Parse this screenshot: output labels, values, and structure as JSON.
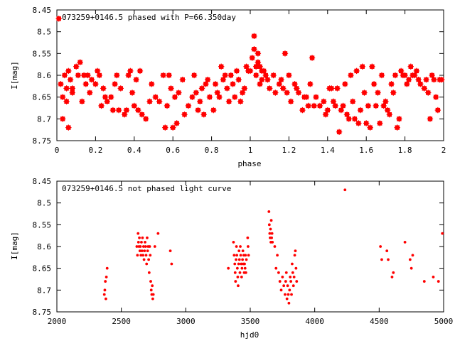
{
  "colors": {
    "points": "#ff0000",
    "axes": "#000000",
    "background": "#ffffff"
  },
  "chart_data": [
    {
      "type": "scatter",
      "title": "073259+0146.5 phased with P=66.350day",
      "xlabel": "phase",
      "ylabel": "I[mag]",
      "xlim": [
        0,
        2
      ],
      "ylim": [
        8.45,
        8.75
      ],
      "y_inverted": true,
      "grid": false,
      "x_ticks": [
        "0",
        "0.2",
        "0.4",
        "0.6",
        "0.8",
        "1",
        "1.2",
        "1.4",
        "1.6",
        "1.8",
        "2"
      ],
      "y_ticks": [
        "8.45",
        "8.5",
        "8.55",
        "8.6",
        "8.65",
        "8.7",
        "8.75"
      ],
      "marker": "star",
      "points": [
        [
          0.01,
          8.47
        ],
        [
          0.02,
          8.62
        ],
        [
          0.03,
          8.65
        ],
        [
          0.03,
          8.7
        ],
        [
          0.04,
          8.6
        ],
        [
          0.05,
          8.63
        ],
        [
          0.05,
          8.66
        ],
        [
          0.06,
          8.59
        ],
        [
          0.06,
          8.72
        ],
        [
          0.07,
          8.61
        ],
        [
          0.08,
          8.63
        ],
        [
          0.08,
          8.64
        ],
        [
          0.1,
          8.58
        ],
        [
          0.11,
          8.6
        ],
        [
          0.12,
          8.57
        ],
        [
          0.13,
          8.66
        ],
        [
          0.14,
          8.6
        ],
        [
          0.15,
          8.62
        ],
        [
          0.16,
          8.6
        ],
        [
          0.17,
          8.64
        ],
        [
          0.18,
          8.61
        ],
        [
          0.2,
          8.62
        ],
        [
          0.21,
          8.59
        ],
        [
          0.22,
          8.6
        ],
        [
          0.23,
          8.67
        ],
        [
          0.24,
          8.63
        ],
        [
          0.25,
          8.65
        ],
        [
          0.26,
          8.66
        ],
        [
          0.28,
          8.65
        ],
        [
          0.29,
          8.68
        ],
        [
          0.3,
          8.62
        ],
        [
          0.31,
          8.6
        ],
        [
          0.32,
          8.68
        ],
        [
          0.33,
          8.63
        ],
        [
          0.35,
          8.69
        ],
        [
          0.36,
          8.68
        ],
        [
          0.37,
          8.6
        ],
        [
          0.38,
          8.59
        ],
        [
          0.39,
          8.64
        ],
        [
          0.4,
          8.67
        ],
        [
          0.41,
          8.61
        ],
        [
          0.42,
          8.68
        ],
        [
          0.43,
          8.59
        ],
        [
          0.44,
          8.69
        ],
        [
          0.46,
          8.7
        ],
        [
          0.48,
          8.66
        ],
        [
          0.49,
          8.62
        ],
        [
          0.51,
          8.65
        ],
        [
          0.53,
          8.66
        ],
        [
          0.55,
          8.6
        ],
        [
          0.56,
          8.72
        ],
        [
          0.57,
          8.67
        ],
        [
          0.58,
          8.6
        ],
        [
          0.59,
          8.63
        ],
        [
          0.6,
          8.72
        ],
        [
          0.61,
          8.65
        ],
        [
          0.62,
          8.71
        ],
        [
          0.63,
          8.64
        ],
        [
          0.65,
          8.61
        ],
        [
          0.66,
          8.69
        ],
        [
          0.68,
          8.67
        ],
        [
          0.7,
          8.65
        ],
        [
          0.71,
          8.6
        ],
        [
          0.72,
          8.64
        ],
        [
          0.73,
          8.68
        ],
        [
          0.74,
          8.66
        ],
        [
          0.75,
          8.63
        ],
        [
          0.76,
          8.69
        ],
        [
          0.77,
          8.62
        ],
        [
          0.78,
          8.61
        ],
        [
          0.79,
          8.65
        ],
        [
          0.81,
          8.68
        ],
        [
          0.82,
          8.62
        ],
        [
          0.83,
          8.64
        ],
        [
          0.84,
          8.65
        ],
        [
          0.85,
          8.58
        ],
        [
          0.86,
          8.61
        ],
        [
          0.87,
          8.6
        ],
        [
          0.88,
          8.63
        ],
        [
          0.89,
          8.66
        ],
        [
          0.9,
          8.6
        ],
        [
          0.91,
          8.62
        ],
        [
          0.92,
          8.65
        ],
        [
          0.93,
          8.59
        ],
        [
          0.94,
          8.61
        ],
        [
          0.95,
          8.66
        ],
        [
          0.96,
          8.64
        ],
        [
          0.97,
          8.63
        ],
        [
          0.98,
          8.58
        ],
        [
          0.99,
          8.59
        ],
        [
          1.0,
          8.59
        ],
        [
          1.01,
          8.56
        ],
        [
          1.02,
          8.54
        ],
        [
          1.02,
          8.51
        ],
        [
          1.03,
          8.58
        ],
        [
          1.03,
          8.6
        ],
        [
          1.04,
          8.55
        ],
        [
          1.04,
          8.57
        ],
        [
          1.05,
          8.58
        ],
        [
          1.05,
          8.62
        ],
        [
          1.06,
          8.59
        ],
        [
          1.06,
          8.61
        ],
        [
          1.07,
          8.59
        ],
        [
          1.08,
          8.6
        ],
        [
          1.09,
          8.61
        ],
        [
          1.1,
          8.63
        ],
        [
          1.12,
          8.6
        ],
        [
          1.13,
          8.64
        ],
        [
          1.15,
          8.62
        ],
        [
          1.16,
          8.61
        ],
        [
          1.17,
          8.63
        ],
        [
          1.18,
          8.55
        ],
        [
          1.19,
          8.64
        ],
        [
          1.2,
          8.6
        ],
        [
          1.21,
          8.66
        ],
        [
          1.23,
          8.62
        ],
        [
          1.24,
          8.63
        ],
        [
          1.25,
          8.64
        ],
        [
          1.27,
          8.68
        ],
        [
          1.28,
          8.65
        ],
        [
          1.29,
          8.65
        ],
        [
          1.3,
          8.67
        ],
        [
          1.31,
          8.62
        ],
        [
          1.32,
          8.56
        ],
        [
          1.33,
          8.67
        ],
        [
          1.34,
          8.65
        ],
        [
          1.36,
          8.67
        ],
        [
          1.38,
          8.66
        ],
        [
          1.39,
          8.69
        ],
        [
          1.4,
          8.68
        ],
        [
          1.41,
          8.63
        ],
        [
          1.42,
          8.63
        ],
        [
          1.43,
          8.66
        ],
        [
          1.44,
          8.67
        ],
        [
          1.45,
          8.63
        ],
        [
          1.46,
          8.73
        ],
        [
          1.47,
          8.68
        ],
        [
          1.48,
          8.67
        ],
        [
          1.49,
          8.62
        ],
        [
          1.5,
          8.69
        ],
        [
          1.51,
          8.7
        ],
        [
          1.52,
          8.6
        ],
        [
          1.53,
          8.66
        ],
        [
          1.54,
          8.7
        ],
        [
          1.55,
          8.59
        ],
        [
          1.56,
          8.71
        ],
        [
          1.57,
          8.68
        ],
        [
          1.58,
          8.58
        ],
        [
          1.59,
          8.64
        ],
        [
          1.6,
          8.71
        ],
        [
          1.61,
          8.67
        ],
        [
          1.62,
          8.72
        ],
        [
          1.63,
          8.58
        ],
        [
          1.64,
          8.62
        ],
        [
          1.65,
          8.67
        ],
        [
          1.66,
          8.64
        ],
        [
          1.67,
          8.71
        ],
        [
          1.68,
          8.6
        ],
        [
          1.69,
          8.67
        ],
        [
          1.7,
          8.66
        ],
        [
          1.71,
          8.68
        ],
        [
          1.72,
          8.69
        ],
        [
          1.73,
          8.62
        ],
        [
          1.74,
          8.64
        ],
        [
          1.75,
          8.6
        ],
        [
          1.76,
          8.72
        ],
        [
          1.77,
          8.7
        ],
        [
          1.78,
          8.59
        ],
        [
          1.79,
          8.6
        ],
        [
          1.8,
          8.6
        ],
        [
          1.81,
          8.62
        ],
        [
          1.82,
          8.61
        ],
        [
          1.83,
          8.58
        ],
        [
          1.84,
          8.6
        ],
        [
          1.85,
          8.6
        ],
        [
          1.86,
          8.59
        ],
        [
          1.87,
          8.61
        ],
        [
          1.88,
          8.62
        ],
        [
          1.9,
          8.63
        ],
        [
          1.91,
          8.61
        ],
        [
          1.92,
          8.64
        ],
        [
          1.93,
          8.7
        ],
        [
          1.94,
          8.6
        ],
        [
          1.95,
          8.61
        ],
        [
          1.96,
          8.65
        ],
        [
          1.97,
          8.68
        ],
        [
          1.98,
          8.61
        ],
        [
          1.99,
          8.61
        ]
      ]
    },
    {
      "type": "scatter",
      "title": "073259+0146.5 not phased light curve",
      "xlabel": "hjd0",
      "ylabel": "I[mag]",
      "xlim": [
        2000,
        5000
      ],
      "ylim": [
        8.45,
        8.75
      ],
      "y_inverted": true,
      "grid": false,
      "x_ticks": [
        "2000",
        "2500",
        "3000",
        "3500",
        "4000",
        "4500",
        "5000"
      ],
      "y_ticks": [
        "8.45",
        "8.5",
        "8.55",
        "8.6",
        "8.65",
        "8.7",
        "8.75"
      ],
      "marker": "dot",
      "points": [
        [
          2368,
          8.71
        ],
        [
          2372,
          8.7
        ],
        [
          2376,
          8.68
        ],
        [
          2380,
          8.72
        ],
        [
          2384,
          8.67
        ],
        [
          2390,
          8.65
        ],
        [
          2620,
          8.6
        ],
        [
          2625,
          8.62
        ],
        [
          2630,
          8.57
        ],
        [
          2633,
          8.59
        ],
        [
          2637,
          8.6
        ],
        [
          2640,
          8.58
        ],
        [
          2644,
          8.61
        ],
        [
          2648,
          8.6
        ],
        [
          2652,
          8.62
        ],
        [
          2656,
          8.59
        ],
        [
          2660,
          8.61
        ],
        [
          2664,
          8.58
        ],
        [
          2668,
          8.62
        ],
        [
          2672,
          8.6
        ],
        [
          2676,
          8.63
        ],
        [
          2680,
          8.61
        ],
        [
          2684,
          8.59
        ],
        [
          2688,
          8.6
        ],
        [
          2692,
          8.62
        ],
        [
          2696,
          8.64
        ],
        [
          2700,
          8.58
        ],
        [
          2704,
          8.61
        ],
        [
          2708,
          8.6
        ],
        [
          2712,
          8.63
        ],
        [
          2716,
          8.66
        ],
        [
          2720,
          8.6
        ],
        [
          2724,
          8.62
        ],
        [
          2728,
          8.68
        ],
        [
          2732,
          8.7
        ],
        [
          2736,
          8.71
        ],
        [
          2740,
          8.69
        ],
        [
          2744,
          8.72
        ],
        [
          2748,
          8.71
        ],
        [
          2760,
          8.6
        ],
        [
          2785,
          8.57
        ],
        [
          2880,
          8.61
        ],
        [
          2890,
          8.64
        ],
        [
          3330,
          8.65
        ],
        [
          3370,
          8.59
        ],
        [
          3375,
          8.62
        ],
        [
          3380,
          8.64
        ],
        [
          3383,
          8.66
        ],
        [
          3386,
          8.68
        ],
        [
          3390,
          8.63
        ],
        [
          3393,
          8.6
        ],
        [
          3396,
          8.62
        ],
        [
          3400,
          8.65
        ],
        [
          3403,
          8.67
        ],
        [
          3406,
          8.69
        ],
        [
          3410,
          8.64
        ],
        [
          3413,
          8.61
        ],
        [
          3416,
          8.63
        ],
        [
          3420,
          8.66
        ],
        [
          3423,
          8.6
        ],
        [
          3426,
          8.62
        ],
        [
          3430,
          8.64
        ],
        [
          3433,
          8.67
        ],
        [
          3436,
          8.65
        ],
        [
          3440,
          8.63
        ],
        [
          3443,
          8.61
        ],
        [
          3446,
          8.64
        ],
        [
          3450,
          8.62
        ],
        [
          3453,
          8.66
        ],
        [
          3456,
          8.64
        ],
        [
          3460,
          8.65
        ],
        [
          3463,
          8.62
        ],
        [
          3466,
          8.66
        ],
        [
          3470,
          8.63
        ],
        [
          3480,
          8.58
        ],
        [
          3483,
          8.6
        ],
        [
          3487,
          8.62
        ],
        [
          3645,
          8.52
        ],
        [
          3648,
          8.55
        ],
        [
          3651,
          8.57
        ],
        [
          3654,
          8.58
        ],
        [
          3657,
          8.56
        ],
        [
          3660,
          8.59
        ],
        [
          3663,
          8.54
        ],
        [
          3666,
          8.58
        ],
        [
          3669,
          8.57
        ],
        [
          3672,
          8.59
        ],
        [
          3690,
          8.6
        ],
        [
          3700,
          8.65
        ],
        [
          3710,
          8.62
        ],
        [
          3720,
          8.66
        ],
        [
          3730,
          8.68
        ],
        [
          3740,
          8.7
        ],
        [
          3750,
          8.67
        ],
        [
          3760,
          8.69
        ],
        [
          3770,
          8.71
        ],
        [
          3775,
          8.68
        ],
        [
          3780,
          8.66
        ],
        [
          3785,
          8.72
        ],
        [
          3790,
          8.69
        ],
        [
          3795,
          8.71
        ],
        [
          3800,
          8.73
        ],
        [
          3805,
          8.7
        ],
        [
          3810,
          8.67
        ],
        [
          3815,
          8.68
        ],
        [
          3820,
          8.71
        ],
        [
          3825,
          8.64
        ],
        [
          3830,
          8.66
        ],
        [
          3835,
          8.69
        ],
        [
          3840,
          8.67
        ],
        [
          3845,
          8.62
        ],
        [
          3850,
          8.61
        ],
        [
          3855,
          8.65
        ],
        [
          3860,
          8.68
        ],
        [
          4235,
          8.47
        ],
        [
          4510,
          8.6
        ],
        [
          4520,
          8.63
        ],
        [
          4560,
          8.61
        ],
        [
          4570,
          8.63
        ],
        [
          4600,
          8.67
        ],
        [
          4610,
          8.66
        ],
        [
          4700,
          8.59
        ],
        [
          4740,
          8.63
        ],
        [
          4750,
          8.65
        ],
        [
          4760,
          8.62
        ],
        [
          4850,
          8.68
        ],
        [
          4920,
          8.67
        ],
        [
          4960,
          8.68
        ],
        [
          4990,
          8.57
        ]
      ]
    }
  ]
}
